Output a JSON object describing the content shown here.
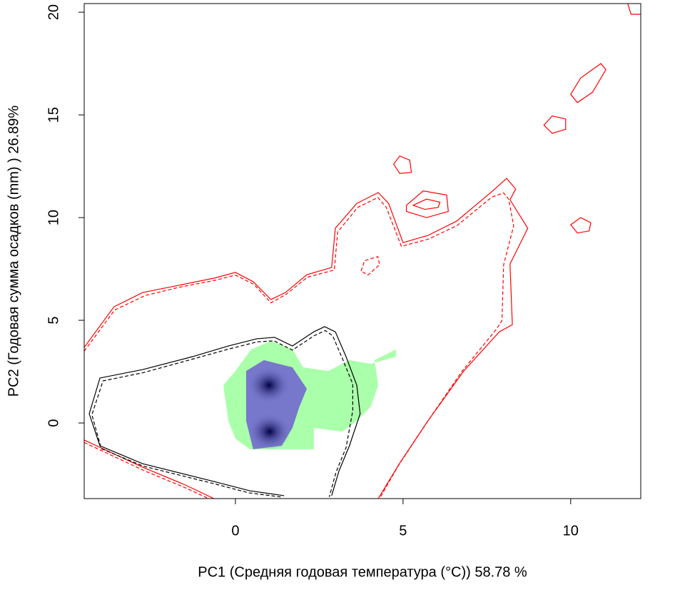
{
  "chart_data": {
    "type": "contour",
    "x_label": "PC1 (Средняя годовая температура (°C)) 58.78 %",
    "y_label": "PC2 (Годовая сумма осадков  (mm) ) 26.89%",
    "xlim": [
      -4.51,
      12.09
    ],
    "ylim": [
      -3.68,
      20.42
    ],
    "xticks": [
      0,
      5,
      10
    ],
    "yticks": [
      0,
      5,
      10,
      15,
      20
    ],
    "series": [
      {
        "color": "#aaffaa",
        "fill": true,
        "closed": true,
        "x": [
          -0.36,
          -0.21,
          0,
          0.43,
          2.34,
          2.34,
          3.19,
          3.62,
          4.04,
          4.26,
          4.15,
          4.79,
          4.79,
          4.04,
          3.4,
          2.77,
          2.02,
          1.7,
          1.06,
          0.47,
          0
        ],
        "y": [
          1.84,
          0.1,
          -0.76,
          -1.28,
          -1.28,
          -0.24,
          -0.42,
          0.1,
          0.8,
          1.84,
          3.06,
          3.58,
          3.23,
          2.88,
          3.06,
          2.53,
          2.71,
          3.58,
          3.99,
          3.58,
          2.53
        ]
      },
      {
        "color": "#7777cc",
        "fill": true,
        "closed": true,
        "x": [
          0.32,
          0.85,
          1.7,
          2.13,
          1.91,
          1.7,
          1.38,
          0.53,
          0.32,
          0.32
        ],
        "y": [
          2.53,
          3.06,
          2.71,
          1.67,
          0.8,
          -0.24,
          -1.11,
          -1.28,
          0.1,
          1.15
        ]
      },
      {
        "color": "#ff0000",
        "dash": false,
        "x": [
          -4.51,
          -3.62,
          -2.77,
          -1.7,
          -0.64,
          0,
          0.53,
          1.06,
          1.49,
          2.13,
          2.87,
          2.98,
          3.62,
          4.26,
          4.57,
          5.0,
          5.74,
          6.6,
          7.66,
          8.09,
          8.36,
          8.19,
          8.72,
          8.19,
          8.26,
          7.87,
          6.81,
          5.74,
          4.89,
          4.26
        ],
        "y": [
          3.68,
          5.66,
          6.35,
          6.7,
          7.05,
          7.33,
          6.88,
          6.01,
          6.35,
          7.22,
          7.57,
          9.48,
          10.69,
          11.22,
          10.69,
          8.78,
          9.13,
          9.83,
          11.28,
          11.91,
          11.39,
          10.87,
          9.48,
          7.74,
          4.79,
          4.44,
          2.53,
          0.1,
          -1.98,
          -3.68
        ]
      },
      {
        "color": "#ff0000",
        "dash": false,
        "x": [
          -4.51,
          -2.77,
          -1.49,
          -0.64
        ],
        "y": [
          -0.83,
          -2.15,
          -3.02,
          -3.68
        ]
      },
      {
        "color": "#ff0000",
        "dash": true,
        "x": [
          -4.51,
          -3.6,
          -2.7,
          -1.7,
          -0.6,
          0,
          0.55,
          1.06,
          1.5,
          2.15,
          2.95,
          3.05,
          3.65,
          4.25,
          4.5,
          4.95,
          5.75,
          6.6,
          7.65,
          8.0,
          8.15,
          8.3,
          8.0,
          7.95,
          7.8,
          6.75,
          5.7,
          4.85,
          4.3
        ],
        "y": [
          3.5,
          5.5,
          6.2,
          6.6,
          6.95,
          7.2,
          6.75,
          5.85,
          6.25,
          7.1,
          7.45,
          9.3,
          10.5,
          10.98,
          10.5,
          8.6,
          8.95,
          9.6,
          11.0,
          11.2,
          10.9,
          9.6,
          7.7,
          5.0,
          4.6,
          2.5,
          0.0,
          -2.1,
          -3.68
        ]
      },
      {
        "color": "#ff0000",
        "dash": true,
        "x": [
          -4.51,
          -2.75,
          -1.5,
          -0.8
        ],
        "y": [
          -0.95,
          -2.3,
          -3.15,
          -3.68
        ]
      },
      {
        "color": "#ff0000",
        "dash": false,
        "closed": true,
        "x": [
          4.72,
          4.9,
          5.2,
          5.25,
          4.9
        ],
        "y": [
          12.6,
          13.0,
          12.8,
          12.2,
          12.15
        ]
      },
      {
        "color": "#ff0000",
        "dash": false,
        "closed": true,
        "x": [
          9.2,
          9.45,
          9.85,
          9.85,
          9.45
        ],
        "y": [
          14.5,
          14.95,
          14.8,
          14.3,
          14.1
        ]
      },
      {
        "color": "#ff0000",
        "dash": false,
        "closed": true,
        "x": [
          10.0,
          10.3,
          10.6,
          10.55,
          10.2
        ],
        "y": [
          9.65,
          10.0,
          9.75,
          9.35,
          9.25
        ]
      },
      {
        "color": "#ff0000",
        "dash": false,
        "closed": true,
        "x": [
          5.1,
          5.6,
          6.3,
          6.35,
          5.7,
          5.1
        ],
        "y": [
          10.6,
          11.3,
          11.1,
          10.3,
          10.0,
          10.3
        ]
      },
      {
        "color": "#ff0000",
        "dash": false,
        "closed": true,
        "x": [
          5.3,
          5.7,
          6.1,
          6.05,
          5.65
        ],
        "y": [
          10.6,
          10.9,
          10.75,
          10.5,
          10.4
        ]
      },
      {
        "color": "#ff0000",
        "dash": false,
        "closed": true,
        "x": [
          10.0,
          10.3,
          10.9,
          11.05,
          10.65,
          10.2
        ],
        "y": [
          16.0,
          16.8,
          17.5,
          17.2,
          16.1,
          15.6
        ]
      },
      {
        "color": "#ff0000",
        "dash": false,
        "x": [
          11.7,
          11.8,
          12.09
        ],
        "y": [
          20.42,
          19.9,
          19.9
        ]
      },
      {
        "color": "#ff0000",
        "dash": true,
        "closed": true,
        "x": [
          3.75,
          3.85,
          4.25,
          4.3,
          3.95
        ],
        "y": [
          7.4,
          7.9,
          8.1,
          7.7,
          7.2
        ]
      },
      {
        "color": "#000000",
        "dash": false,
        "x": [
          1.45,
          0.43,
          -0.64,
          -2.77,
          -4.04,
          -4.36,
          -4.04,
          -2.77,
          -1.28,
          -0.21,
          0.64,
          1.17,
          1.7,
          2.34,
          2.66,
          2.98,
          3.3,
          3.62,
          3.72,
          3.4,
          3.09,
          2.87
        ],
        "y": [
          -3.54,
          -3.3,
          -2.85,
          -1.98,
          -1.11,
          0.45,
          2.19,
          2.6,
          3.23,
          3.75,
          4.1,
          4.17,
          3.75,
          4.44,
          4.69,
          4.44,
          3.23,
          1.84,
          0.45,
          -1.11,
          -2.33,
          -3.54
        ]
      },
      {
        "color": "#000000",
        "dash": true,
        "x": [
          1.35,
          0.4,
          -0.65,
          -2.75,
          -4.0,
          -4.28,
          -3.95,
          -2.75,
          -1.3,
          -0.2,
          0.65,
          1.15,
          1.7,
          2.35,
          2.68,
          2.9,
          3.2,
          3.5,
          3.5,
          3.3,
          3.0,
          2.8
        ],
        "y": [
          -3.6,
          -3.4,
          -2.95,
          -2.1,
          -1.25,
          0.4,
          2.05,
          2.45,
          3.1,
          3.6,
          3.95,
          4.0,
          3.55,
          4.25,
          4.5,
          4.25,
          3.1,
          1.9,
          0.6,
          -1.2,
          -2.4,
          -3.6
        ]
      }
    ],
    "peaks": {
      "color": "#000055",
      "x": [
        1.0,
        1.02
      ],
      "y": [
        1.84,
        -0.42
      ]
    }
  }
}
